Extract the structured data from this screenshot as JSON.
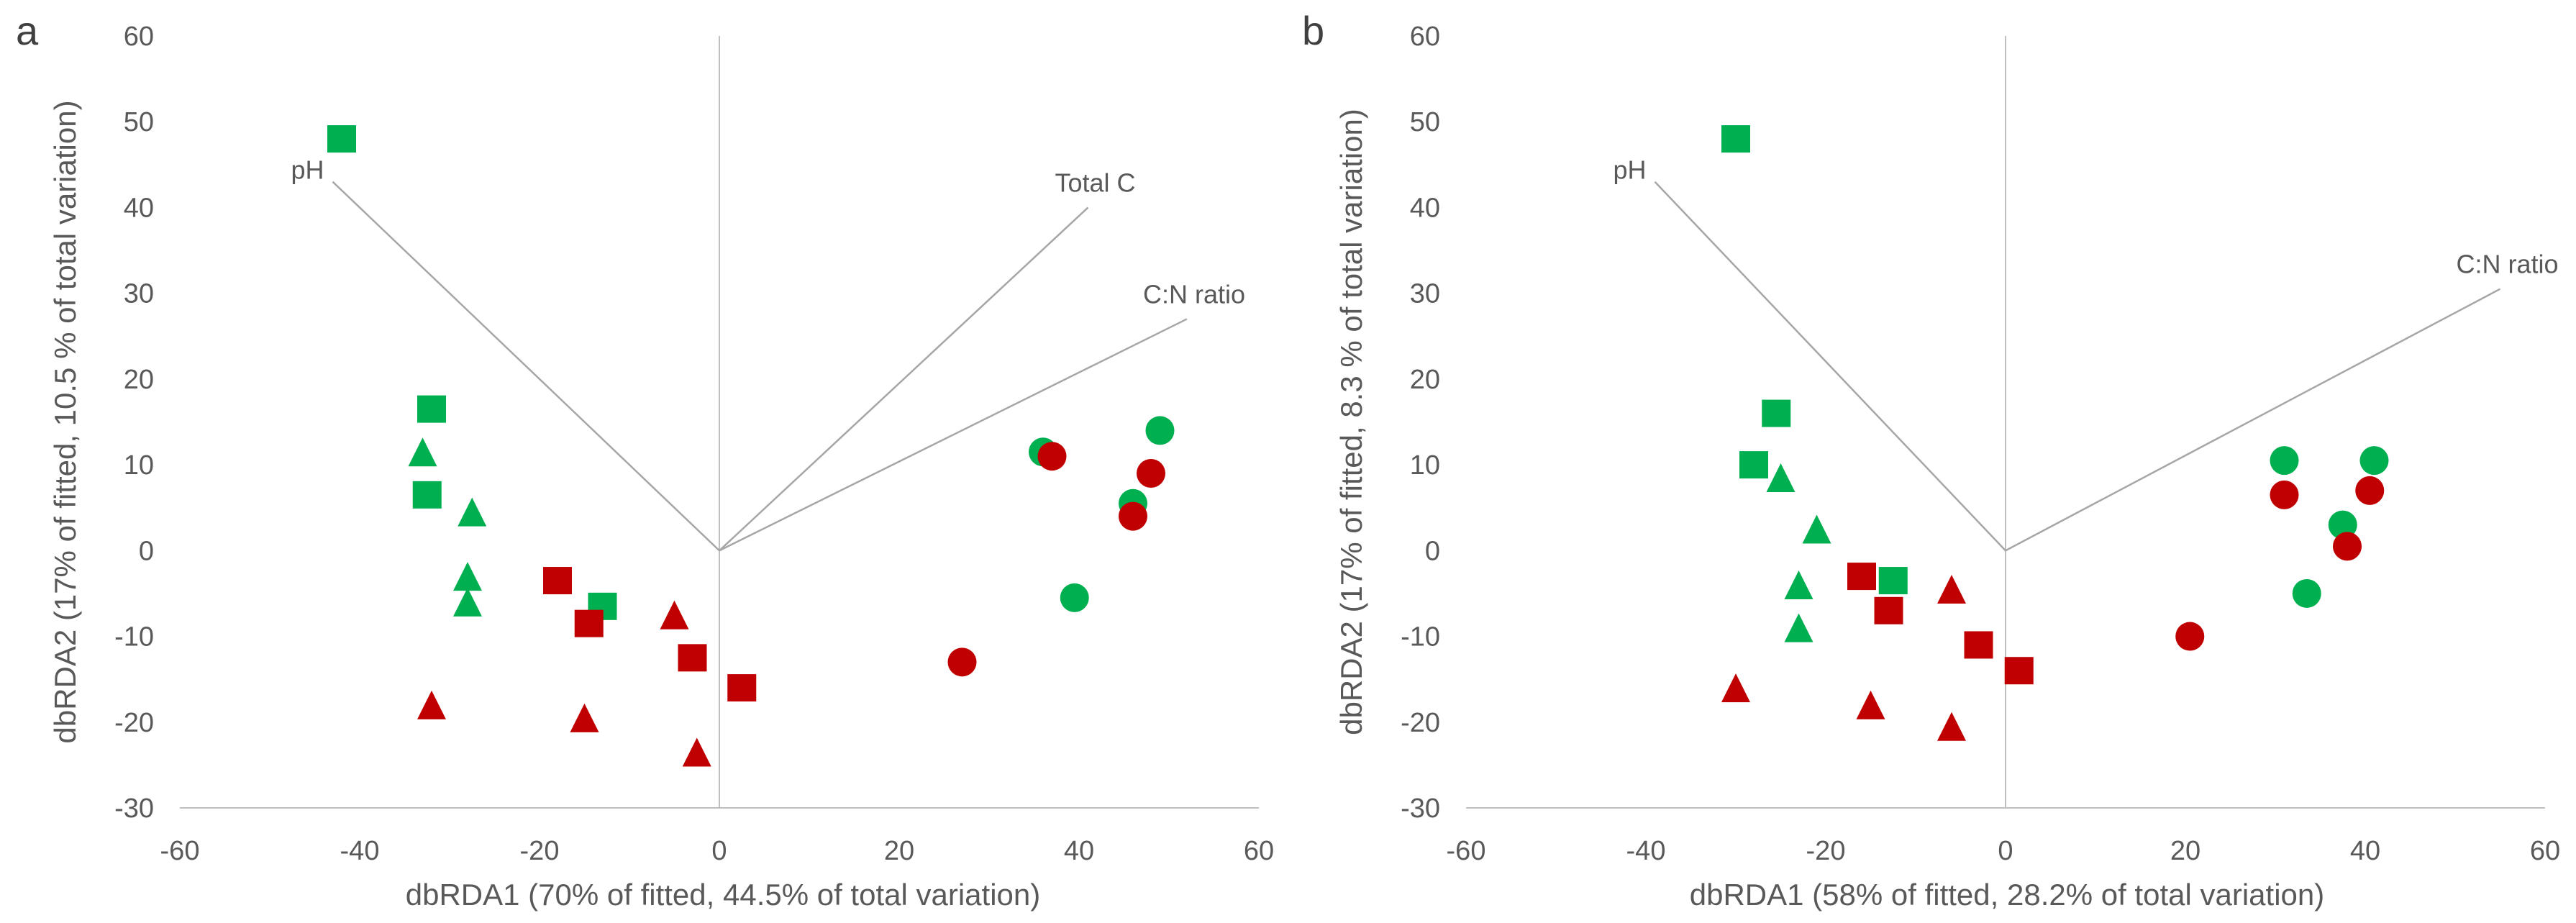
{
  "colors": {
    "green": "#00b050",
    "red": "#c00000",
    "axis": "#bfbfbf",
    "vector": "#a6a6a6",
    "text": "#595959"
  },
  "legend_shapes": {
    "square": "square-marker",
    "triangle": "triangle-marker",
    "circle": "circle-marker"
  },
  "chart_data": [
    {
      "type": "scatter",
      "panel": "a",
      "title": "",
      "xlabel": "dbRDA1 (70% of fitted, 44.5% of total variation)",
      "ylabel": "dbRDA2 (17% of fitted, 10.5 % of total variation)",
      "xlim": [
        -60,
        60
      ],
      "ylim": [
        -30,
        60
      ],
      "xticks": [
        "-60",
        "-40",
        "-20",
        "0",
        "20",
        "40",
        "60"
      ],
      "yticks": [
        "-30",
        "-20",
        "-10",
        "0",
        "10",
        "20",
        "30",
        "40",
        "50",
        "60"
      ],
      "vectors": [
        {
          "label": "pH",
          "x": -43,
          "y": 43
        },
        {
          "label": "Total C",
          "x": 41,
          "y": 40
        },
        {
          "label": "C:N ratio",
          "x": 52,
          "y": 27
        }
      ],
      "series": [
        {
          "name": "green squares",
          "color": "green",
          "shape": "square",
          "points": [
            [
              -42,
              48
            ],
            [
              -32,
              16.5
            ],
            [
              -32.5,
              6.5
            ],
            [
              -13,
              -6.5
            ]
          ]
        },
        {
          "name": "green triangles",
          "color": "green",
          "shape": "triangle",
          "points": [
            [
              -33,
              11.5
            ],
            [
              -27.5,
              4.5
            ],
            [
              -28,
              -3
            ],
            [
              -28,
              -6
            ]
          ]
        },
        {
          "name": "green circles",
          "color": "green",
          "shape": "circle",
          "points": [
            [
              36,
              11.5
            ],
            [
              46,
              5.5
            ],
            [
              49,
              14
            ],
            [
              39.5,
              -5.5
            ]
          ]
        },
        {
          "name": "red squares",
          "color": "red",
          "shape": "square",
          "points": [
            [
              -18,
              -3.5
            ],
            [
              -14.5,
              -8.5
            ],
            [
              -3,
              -12.5
            ],
            [
              2.5,
              -16
            ]
          ]
        },
        {
          "name": "red triangles",
          "color": "red",
          "shape": "triangle",
          "points": [
            [
              -32,
              -18
            ],
            [
              -15,
              -19.5
            ],
            [
              -5,
              -7.5
            ],
            [
              -2.5,
              -23.5
            ]
          ]
        },
        {
          "name": "red circles",
          "color": "red",
          "shape": "circle",
          "points": [
            [
              37,
              11
            ],
            [
              48,
              9
            ],
            [
              46,
              4
            ],
            [
              27,
              -13
            ]
          ]
        }
      ]
    },
    {
      "type": "scatter",
      "panel": "b",
      "title": "",
      "xlabel": "dbRDA1 (58% of fitted, 28.2% of total variation)",
      "ylabel": "dbRDA2 (17% of fitted, 8.3 % of total variation)",
      "xlim": [
        -60,
        60
      ],
      "ylim": [
        -30,
        60
      ],
      "xticks": [
        "-60",
        "-40",
        "-20",
        "0",
        "20",
        "40",
        "60"
      ],
      "yticks": [
        "-30",
        "-20",
        "-10",
        "0",
        "10",
        "20",
        "30",
        "40",
        "50",
        "60"
      ],
      "vectors": [
        {
          "label": "pH",
          "x": -39,
          "y": 43
        },
        {
          "label": "C:N ratio",
          "x": 55,
          "y": 30.5
        }
      ],
      "series": [
        {
          "name": "green squares",
          "color": "green",
          "shape": "square",
          "points": [
            [
              -30,
              48
            ],
            [
              -25.5,
              16
            ],
            [
              -28,
              10
            ],
            [
              -12.5,
              -3.5
            ]
          ]
        },
        {
          "name": "green triangles",
          "color": "green",
          "shape": "triangle",
          "points": [
            [
              -25,
              8.5
            ],
            [
              -21,
              2.5
            ],
            [
              -23,
              -4
            ],
            [
              -23,
              -9
            ]
          ]
        },
        {
          "name": "green circles",
          "color": "green",
          "shape": "circle",
          "points": [
            [
              31,
              10.5
            ],
            [
              41,
              10.5
            ],
            [
              37.5,
              3
            ],
            [
              33.5,
              -5
            ]
          ]
        },
        {
          "name": "red squares",
          "color": "red",
          "shape": "square",
          "points": [
            [
              -16,
              -3
            ],
            [
              -13,
              -7
            ],
            [
              -3,
              -11
            ],
            [
              1.5,
              -14
            ]
          ]
        },
        {
          "name": "red triangles",
          "color": "red",
          "shape": "triangle",
          "points": [
            [
              -30,
              -16
            ],
            [
              -15,
              -18
            ],
            [
              -6,
              -4.5
            ],
            [
              -6,
              -20.5
            ]
          ]
        },
        {
          "name": "red circles",
          "color": "red",
          "shape": "circle",
          "points": [
            [
              31,
              6.5
            ],
            [
              40.5,
              7
            ],
            [
              38,
              0.5
            ],
            [
              20.5,
              -10
            ]
          ]
        }
      ]
    }
  ]
}
